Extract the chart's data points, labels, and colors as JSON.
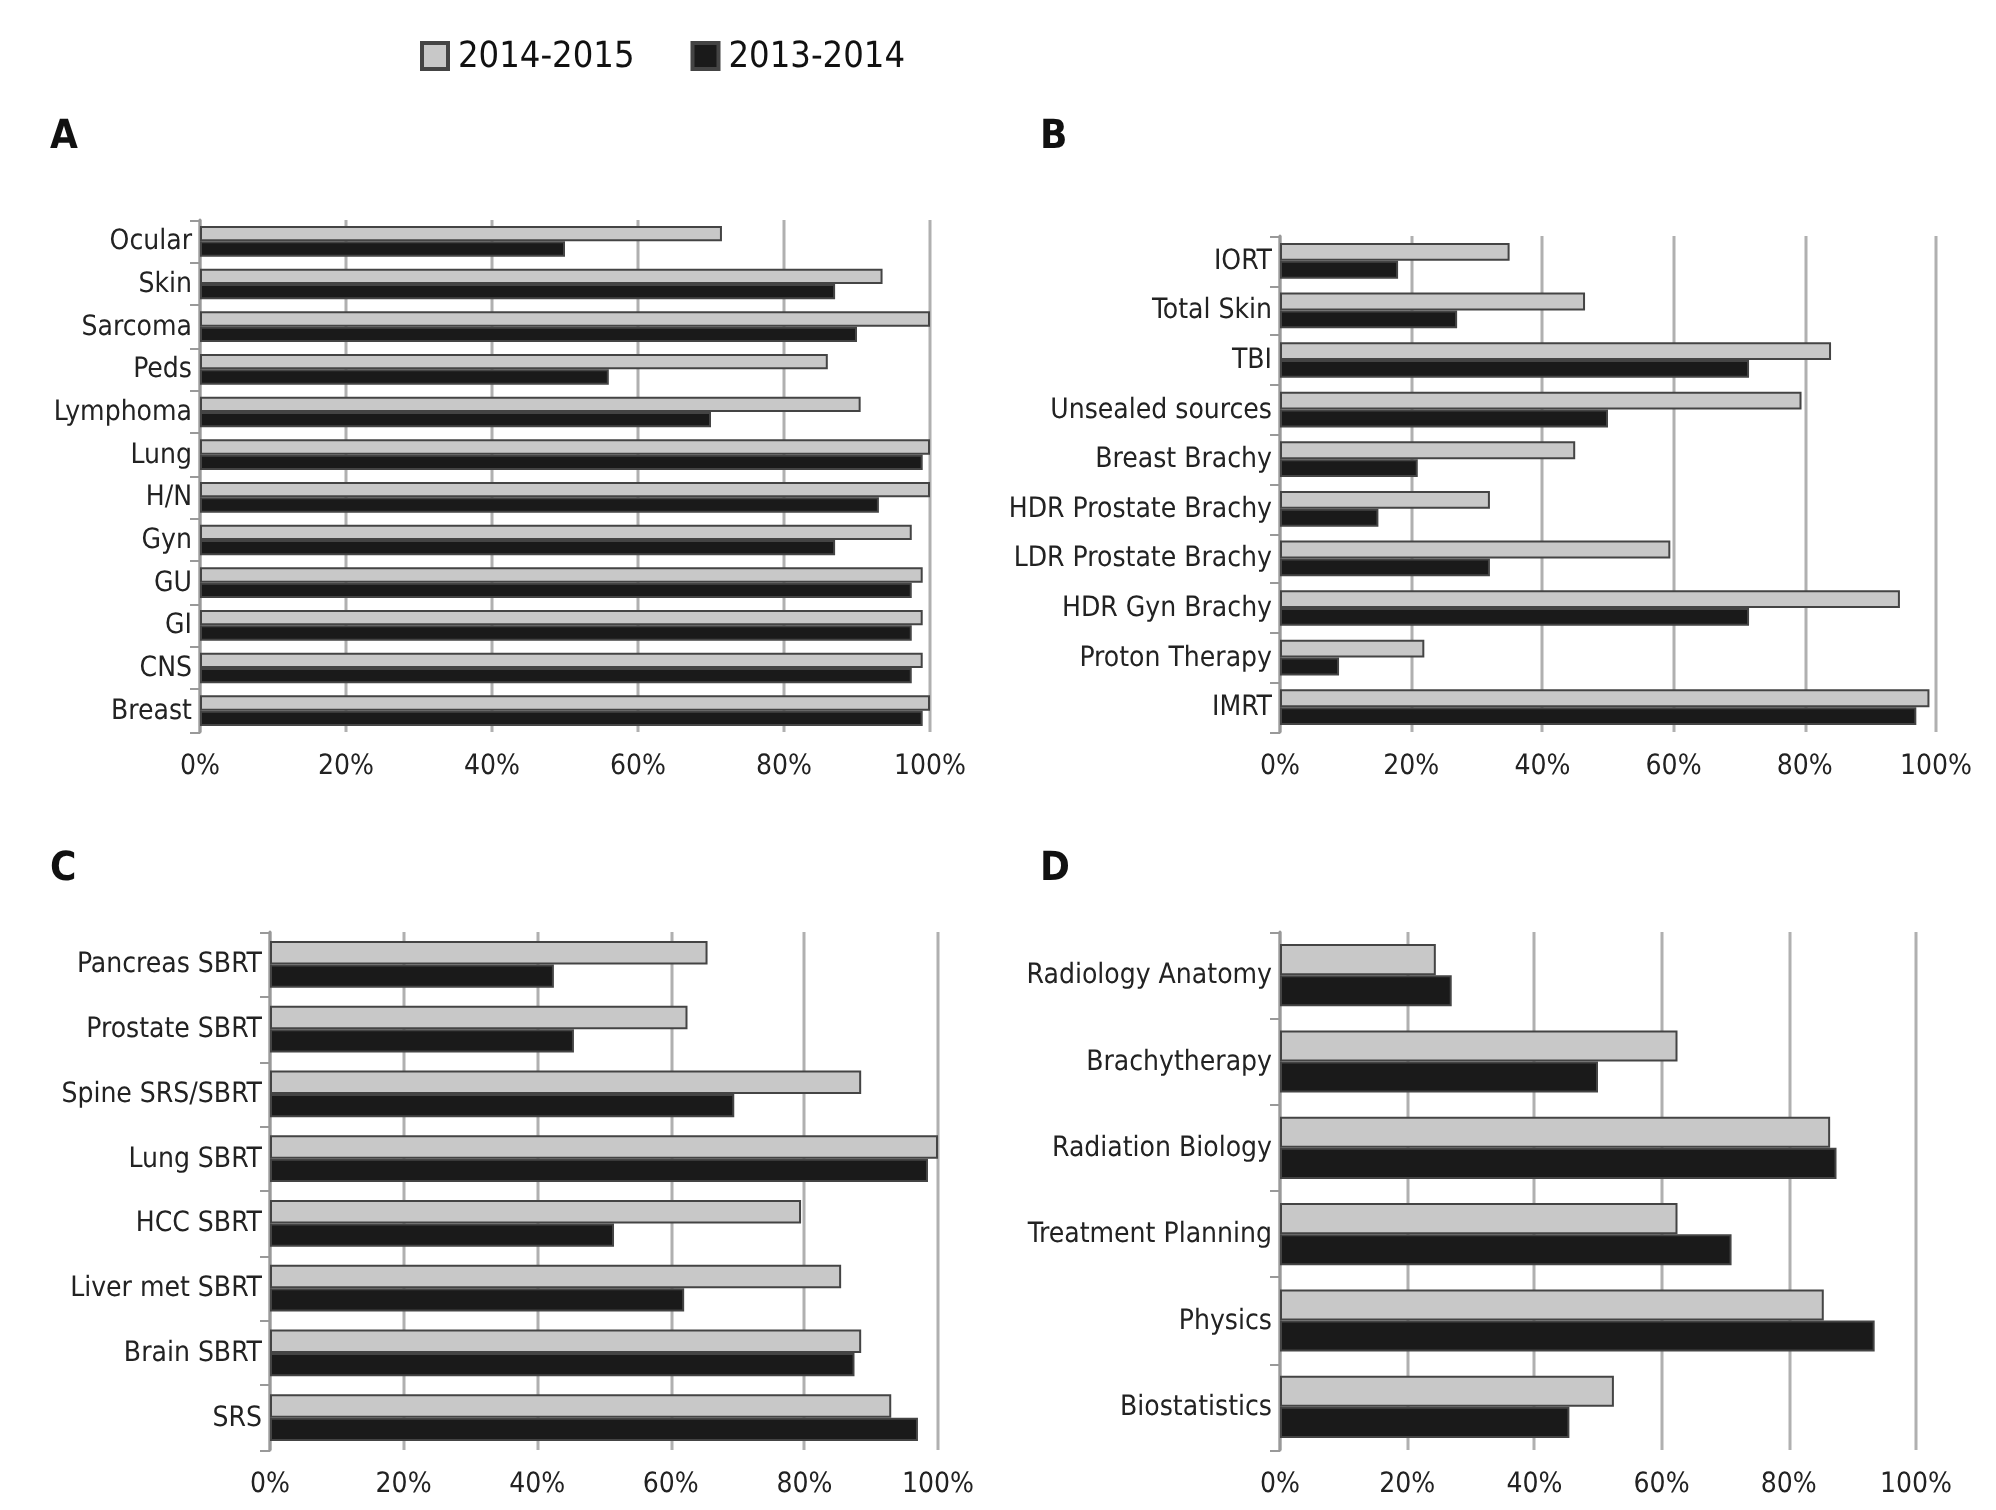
{
  "chart_data": [
    {
      "type": "bar",
      "title": "A",
      "orientation": "horizontal",
      "categories": [
        "Ocular",
        "Skin",
        "Sarcoma",
        "Peds",
        "Lymphoma",
        "Lung",
        "H/N",
        "Gyn",
        "GU",
        "GI",
        "CNS",
        "Breast"
      ],
      "series": [
        {
          "name": "2014-2015",
          "color": "#c8c8c8",
          "values": [
            71.5,
            93.5,
            100,
            86,
            90.5,
            100,
            100,
            97.5,
            99,
            99,
            99,
            100
          ]
        },
        {
          "name": "2013-2014",
          "color": "#1a1a1a",
          "values": [
            50,
            87,
            90,
            56,
            70,
            99,
            93,
            87,
            97.5,
            97.5,
            97.5,
            99
          ]
        }
      ],
      "xlim": [
        0,
        100
      ],
      "xticks": [
        {
          "value": 0,
          "label": "0%"
        },
        {
          "value": 20,
          "label": "20%"
        },
        {
          "value": 40,
          "label": "40%"
        },
        {
          "value": 60,
          "label": "60%"
        },
        {
          "value": 80,
          "label": "80%"
        },
        {
          "value": 100,
          "label": "100%"
        }
      ],
      "grid": "x",
      "legend": "top"
    },
    {
      "type": "bar",
      "title": "B",
      "orientation": "horizontal",
      "categories": [
        "IORT",
        "Total Skin",
        "TBI",
        "Unsealed sources",
        "Breast Brachy",
        "HDR Prostate Brachy",
        "LDR Prostate Brachy",
        "HDR Gyn Brachy",
        "Proton Therapy",
        "IMRT"
      ],
      "series": [
        {
          "color": "#c8c8c8",
          "values": [
            35,
            46.5,
            84,
            79.5,
            45,
            32,
            59.5,
            94.5,
            22,
            99
          ]
        },
        {
          "color": "#1a1a1a",
          "values": [
            18,
            27,
            71.5,
            50,
            21,
            15,
            32,
            71.5,
            9,
            97
          ]
        }
      ],
      "xlim": [
        0,
        100
      ],
      "xticks": [
        {
          "value": 0,
          "label": "0%"
        },
        {
          "value": 20,
          "label": "20%"
        },
        {
          "value": 40,
          "label": "40%"
        },
        {
          "value": 60,
          "label": "60%"
        },
        {
          "value": 80,
          "label": "80%"
        },
        {
          "value": 100,
          "label": "100%"
        }
      ],
      "grid": "x"
    },
    {
      "type": "bar",
      "title": "C",
      "orientation": "horizontal",
      "categories": [
        "Pancreas SBRT",
        "Prostate SBRT",
        "Spine SRS/SBRT",
        "Lung SBRT",
        "HCC SBRT",
        "Liver met SBRT",
        "Brain SBRT",
        "SRS"
      ],
      "series": [
        {
          "color": "#c8c8c8",
          "values": [
            65.5,
            62.5,
            88.5,
            100,
            79.5,
            85.5,
            88.5,
            93
          ]
        },
        {
          "color": "#1a1a1a",
          "values": [
            42.5,
            45.5,
            69.5,
            98.5,
            51.5,
            62,
            87.5,
            97
          ]
        }
      ],
      "xlim": [
        0,
        100
      ],
      "xticks": [
        {
          "value": 0,
          "label": "0%"
        },
        {
          "value": 20,
          "label": "20%"
        },
        {
          "value": 40,
          "label": "40%"
        },
        {
          "value": 60,
          "label": "60%"
        },
        {
          "value": 80,
          "label": "80%"
        },
        {
          "value": 100,
          "label": "100%"
        }
      ],
      "grid": "x"
    },
    {
      "type": "bar",
      "title": "D",
      "orientation": "horizontal",
      "categories": [
        "Radiology Anatomy",
        "Brachytherapy",
        "Radiation Biology",
        "Treatment Planning",
        "Physics",
        "Biostatistics"
      ],
      "series": [
        {
          "color": "#c8c8c8",
          "values": [
            24.5,
            62.5,
            86.5,
            62.5,
            85.5,
            52.5
          ]
        },
        {
          "color": "#1a1a1a",
          "values": [
            27,
            50,
            87.5,
            71,
            93.5,
            45.5
          ]
        }
      ],
      "xlim": [
        0,
        100
      ],
      "xticks": [
        {
          "value": 0,
          "label": "0%"
        },
        {
          "value": 20,
          "label": "20%"
        },
        {
          "value": 40,
          "label": "40%"
        },
        {
          "value": 60,
          "label": "60%"
        },
        {
          "value": 80,
          "label": "80%"
        },
        {
          "value": 100,
          "label": "100%"
        }
      ],
      "grid": "x"
    }
  ]
}
